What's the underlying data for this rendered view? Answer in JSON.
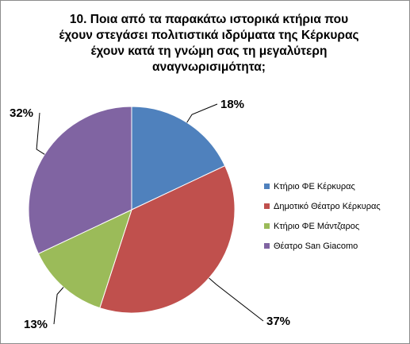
{
  "chart_data": {
    "type": "pie",
    "title_lines": [
      "10. Ποια από τα παρακάτω ιστορικά κτήρια που",
      "έχουν στεγάσει πολιτιστικά ιδρύματα της Κέρκυρας",
      "έχουν κατά τη γνώμη σας τη μεγαλύτερη",
      "αναγνωρισιμότητα;"
    ],
    "categories": [
      "Κτήριο ΦΕ Κέρκυρας",
      "Δημοτικό Θέατρο Κέρκυρας",
      "Κτήριο ΦΕ Μάντζαρος",
      "Θέατρο San Giacomo"
    ],
    "values": [
      18,
      37,
      13,
      32
    ],
    "labels": [
      "18%",
      "37%",
      "13%",
      "32%"
    ],
    "colors": [
      "#4f81bd",
      "#c0504d",
      "#9bbb59",
      "#8064a2"
    ],
    "legend_position": "right"
  }
}
